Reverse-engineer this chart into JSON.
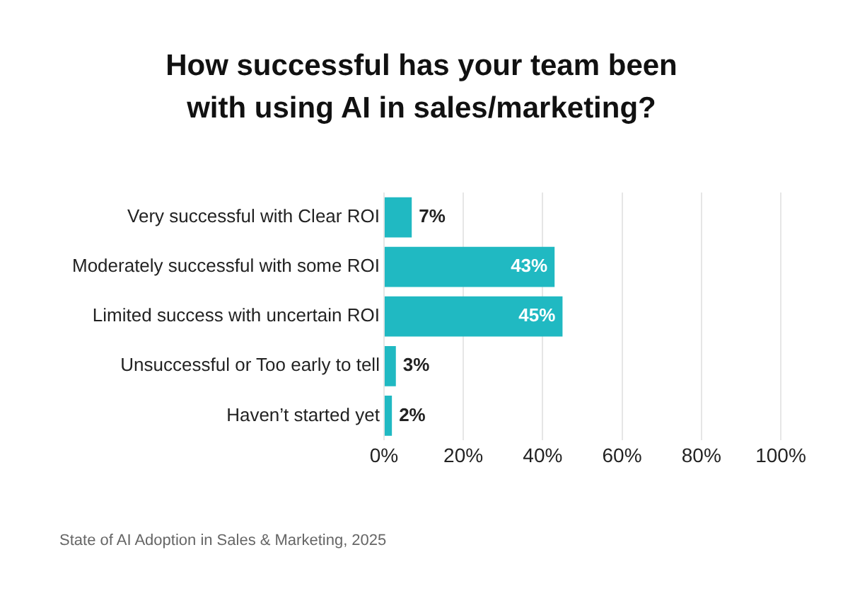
{
  "chart_data": {
    "type": "bar",
    "orientation": "horizontal",
    "title": "How successful has your team been with using AI in sales/marketing?",
    "categories": [
      "Very successful with Clear ROI",
      "Moderately successful with some ROI",
      "Limited success with uncertain ROI",
      "Unsuccessful or Too early to tell",
      "Haven’t started yet"
    ],
    "values": [
      7,
      43,
      45,
      3,
      2
    ],
    "value_labels": [
      "7%",
      "43%",
      "45%",
      "3%",
      "2%"
    ],
    "color": "#20b9c2",
    "xlim": [
      0,
      100
    ],
    "xticks": [
      {
        "value": 0,
        "label": "0%"
      },
      {
        "value": 20,
        "label": "20%"
      },
      {
        "value": 40,
        "label": "40%"
      },
      {
        "value": 60,
        "label": "60%"
      },
      {
        "value": 80,
        "label": "80%"
      },
      {
        "value": 100,
        "label": "100%"
      }
    ],
    "grid": "x",
    "legend": false,
    "annotations": [
      "State of AI Adoption in Sales & Marketing, 2025"
    ]
  }
}
